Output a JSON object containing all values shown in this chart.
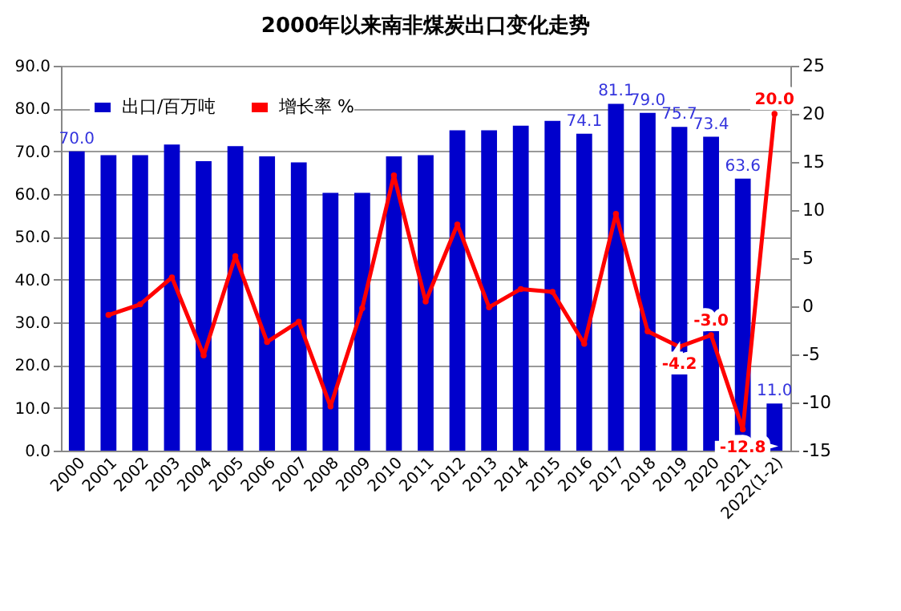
{
  "chart_data": {
    "type": "bar",
    "title": "2000年以来南非煤炭出口变化走势",
    "categories": [
      "2000",
      "2001",
      "2002",
      "2003",
      "2004",
      "2005",
      "2006",
      "2007",
      "2008",
      "2009",
      "2010",
      "2011",
      "2012",
      "2013",
      "2014",
      "2015",
      "2016",
      "2017",
      "2018",
      "2019",
      "2020",
      "2021",
      "2022(1-2)"
    ],
    "series": [
      {
        "name": "出口/百万吨",
        "color": "#0000cc",
        "values": [
          70.0,
          69.1,
          69.1,
          71.6,
          67.7,
          71.2,
          68.8,
          67.4,
          60.3,
          60.3,
          68.8,
          69.1,
          74.9,
          74.9,
          76.0,
          77.1,
          74.1,
          81.1,
          79.0,
          75.7,
          73.4,
          63.6,
          11.0
        ],
        "value_labels": [
          "70.0",
          null,
          null,
          null,
          null,
          null,
          null,
          null,
          null,
          null,
          null,
          null,
          null,
          null,
          null,
          null,
          "74.1",
          "81.1",
          "79.0",
          "75.7",
          "73.4",
          "63.6",
          "11.0"
        ]
      },
      {
        "name": "增长率 %",
        "type": "line",
        "axis": "y2",
        "color": "#ff0000",
        "marker": "circle",
        "values": [
          null,
          -0.9,
          0.2,
          3.0,
          -5.1,
          5.2,
          -3.7,
          -1.6,
          -10.4,
          -0.2,
          13.6,
          0.5,
          8.5,
          -0.1,
          1.8,
          1.5,
          -3.9,
          9.6,
          -2.6,
          -4.2,
          -3.0,
          -12.8,
          20.0
        ],
        "value_labels": [
          null,
          null,
          null,
          null,
          null,
          null,
          null,
          null,
          null,
          null,
          null,
          null,
          null,
          null,
          null,
          null,
          null,
          null,
          null,
          "-4.2",
          "-3.0",
          "-12.8",
          "20.0"
        ]
      }
    ],
    "ylim": [
      0,
      90
    ],
    "yticks": [
      {
        "value": 0,
        "label": "0.0"
      },
      {
        "value": 10,
        "label": "10.0"
      },
      {
        "value": 20,
        "label": "20.0"
      },
      {
        "value": 30,
        "label": "30.0"
      },
      {
        "value": 40,
        "label": "40.0"
      },
      {
        "value": 50,
        "label": "50.0"
      },
      {
        "value": 60,
        "label": "60.0"
      },
      {
        "value": 70,
        "label": "70.0"
      },
      {
        "value": 80,
        "label": "80.0"
      },
      {
        "value": 90,
        "label": "90.0"
      }
    ],
    "y2lim": [
      -15,
      25
    ],
    "y2ticks": [
      -15,
      -10,
      -5,
      0,
      5,
      10,
      15,
      20,
      25
    ],
    "grid": "y",
    "legend": "top left"
  }
}
